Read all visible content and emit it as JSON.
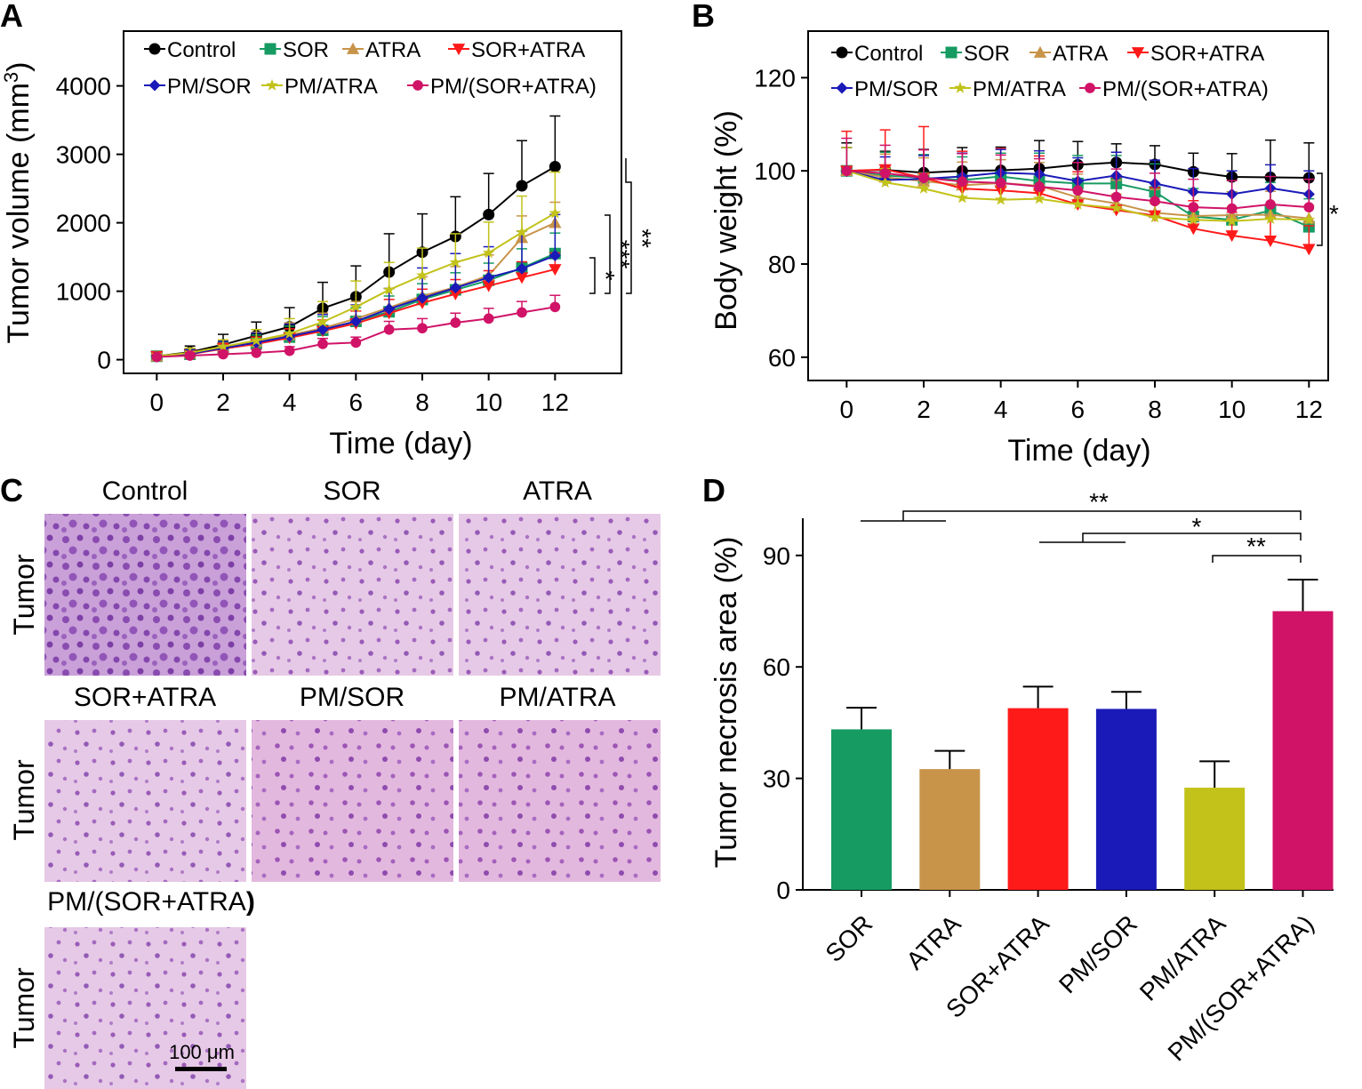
{
  "colors": {
    "Control": "#000000",
    "SOR": "#169b62",
    "ATRA": "#c8944a",
    "SOR+ATRA": "#ff1a1a",
    "PM/SOR": "#1a1ab8",
    "PM/ATRA": "#c2c21a",
    "PM/(SOR+ATRA)": "#d01367"
  },
  "legend_labels": [
    "Control",
    "SOR",
    "ATRA",
    "SOR+ATRA",
    "PM/SOR",
    "PM/ATRA",
    "PM/(SOR+ATRA)"
  ],
  "chart_data": [
    {
      "panel": "A",
      "type": "line",
      "xlabel": "Time (day)",
      "ylabel": "Tumor volume (mm",
      "ylabel_sup": "3",
      "ylabel_close": ")",
      "xlim": [
        -1,
        14
      ],
      "ylim": [
        -200,
        4800
      ],
      "xticks": [
        0,
        2,
        4,
        6,
        8,
        10,
        12
      ],
      "yticks": [
        0,
        1000,
        2000,
        3000,
        4000
      ],
      "x": [
        0,
        1,
        2,
        3,
        4,
        5,
        6,
        7,
        8,
        9,
        10,
        11,
        12
      ],
      "series": [
        {
          "name": "Control",
          "marker": "circle",
          "values": [
            50,
            110,
            220,
            350,
            480,
            750,
            920,
            1280,
            1570,
            1800,
            2120,
            2540,
            2820
          ],
          "err": [
            60,
            90,
            150,
            200,
            280,
            380,
            450,
            560,
            560,
            580,
            600,
            660,
            740
          ]
        },
        {
          "name": "SOR",
          "marker": "square",
          "values": [
            50,
            80,
            170,
            240,
            330,
            430,
            560,
            700,
            880,
            1020,
            1160,
            1340,
            1550
          ],
          "err": [
            40,
            60,
            80,
            120,
            160,
            200,
            200,
            230,
            230,
            250,
            250,
            280,
            300
          ]
        },
        {
          "name": "ATRA",
          "marker": "triangle-up",
          "values": [
            50,
            90,
            180,
            260,
            360,
            460,
            600,
            760,
            930,
            1060,
            1230,
            1780,
            2000
          ],
          "err": [
            40,
            60,
            100,
            140,
            180,
            220,
            250,
            280,
            280,
            300,
            300,
            320,
            300
          ]
        },
        {
          "name": "SOR+ATRA",
          "marker": "triangle-down",
          "values": [
            50,
            80,
            160,
            230,
            320,
            420,
            530,
            680,
            830,
            960,
            1080,
            1200,
            1320
          ],
          "err": [
            40,
            50,
            80,
            100,
            130,
            160,
            180,
            200,
            200,
            210,
            220,
            230,
            240
          ]
        },
        {
          "name": "PM/SOR",
          "marker": "diamond",
          "values": [
            50,
            85,
            170,
            250,
            340,
            440,
            560,
            740,
            900,
            1050,
            1200,
            1330,
            1520
          ],
          "err": [
            40,
            60,
            100,
            140,
            180,
            220,
            240,
            300,
            440,
            500,
            450,
            550,
            600
          ]
        },
        {
          "name": "PM/ATRA",
          "marker": "star",
          "values": [
            50,
            100,
            190,
            280,
            380,
            550,
            770,
            1020,
            1230,
            1420,
            1560,
            1860,
            2140
          ],
          "err": [
            40,
            70,
            100,
            160,
            220,
            300,
            380,
            400,
            400,
            420,
            450,
            530,
            600
          ]
        },
        {
          "name": "PM/(SOR+ATRA)",
          "marker": "hexagon",
          "values": [
            40,
            60,
            80,
            100,
            130,
            230,
            250,
            440,
            460,
            540,
            600,
            690,
            770
          ],
          "err": [
            30,
            40,
            40,
            50,
            60,
            80,
            80,
            120,
            140,
            140,
            150,
            160,
            170
          ]
        }
      ],
      "significance": [
        "*",
        "***",
        "**"
      ]
    },
    {
      "panel": "B",
      "type": "line",
      "xlabel": "Time (day)",
      "ylabel": "Body weight (%)",
      "xlim": [
        -1,
        12.5
      ],
      "ylim": [
        55,
        130
      ],
      "xticks": [
        0,
        2,
        4,
        6,
        8,
        10,
        12
      ],
      "yticks": [
        60,
        80,
        100,
        120
      ],
      "x": [
        0,
        1,
        2,
        3,
        4,
        5,
        6,
        7,
        8,
        9,
        10,
        11,
        12
      ],
      "series": [
        {
          "name": "Control",
          "marker": "circle",
          "values": [
            100,
            100.2,
            99.6,
            100,
            100.1,
            100.5,
            101.3,
            101.8,
            101.4,
            99.8,
            98.7,
            98.6,
            98.5
          ],
          "err": [
            6,
            4,
            5,
            5,
            5,
            6,
            5,
            4,
            4,
            4,
            5,
            8,
            7.5
          ]
        },
        {
          "name": "SOR",
          "marker": "square",
          "values": [
            100,
            99,
            98.5,
            98,
            98.8,
            97.8,
            97.3,
            97.3,
            95.5,
            90.2,
            89.5,
            91.5,
            88
          ],
          "err": [
            5,
            5,
            5,
            5,
            5,
            6,
            6,
            6,
            6,
            6,
            6,
            6,
            6
          ]
        },
        {
          "name": "ATRA",
          "marker": "triangle-up",
          "values": [
            100,
            98.6,
            97.8,
            96.9,
            97.4,
            96.8,
            94.3,
            93,
            91,
            90.3,
            90.5,
            90.6,
            89.8
          ],
          "err": [
            5,
            5,
            5,
            5,
            5,
            5,
            5,
            5,
            5,
            5,
            5,
            5,
            5
          ]
        },
        {
          "name": "SOR+ATRA",
          "marker": "triangle-down",
          "values": [
            100,
            100.3,
            98.5,
            96.2,
            95.8,
            95.2,
            92.8,
            91.6,
            90.4,
            87.6,
            86.1,
            85,
            83.2
          ],
          "err": [
            8.5,
            8.5,
            11,
            8,
            9,
            8,
            7,
            7,
            6,
            6,
            5,
            5,
            5
          ]
        },
        {
          "name": "PM/SOR",
          "marker": "diamond",
          "values": [
            100,
            98,
            98.3,
            98.8,
            99.6,
            99.3,
            97.8,
            99,
            97.3,
            95.5,
            95,
            96.3,
            95
          ],
          "err": [
            5,
            5,
            5,
            5,
            5,
            5,
            5,
            5,
            5,
            5,
            5,
            5,
            5
          ]
        },
        {
          "name": "PM/ATRA",
          "marker": "star",
          "values": [
            100,
            97.5,
            96.2,
            94.2,
            93.8,
            94,
            92.8,
            92,
            90,
            89.5,
            89.2,
            89.7,
            89.5
          ],
          "err": [
            5,
            3,
            3,
            3,
            3,
            3,
            3,
            3,
            3,
            3,
            3,
            3,
            3
          ]
        },
        {
          "name": "PM/(SOR+ATRA)",
          "marker": "hexagon",
          "values": [
            100,
            99.5,
            98.5,
            97.7,
            97.4,
            96.6,
            95.8,
            94.4,
            93.5,
            92.2,
            91.9,
            92.8,
            92.2
          ],
          "err": [
            7,
            6,
            6,
            6,
            6,
            6,
            6,
            6,
            6,
            6,
            6,
            6,
            6
          ]
        }
      ],
      "significance": [
        "*"
      ]
    },
    {
      "panel": "D",
      "type": "bar",
      "ylabel": "Tumor necrosis area (%)",
      "ylim": [
        0,
        100
      ],
      "yticks": [
        0,
        30,
        60,
        90
      ],
      "categories": [
        "SOR",
        "ATRA",
        "SOR+ATRA",
        "PM/SOR",
        "PM/ATRA",
        "PM/(SOR+ATRA)"
      ],
      "values": [
        43.2,
        32.5,
        48.9,
        48.7,
        27.5,
        75
      ],
      "err": [
        5.8,
        4.9,
        5.8,
        4.6,
        7.1,
        8.5
      ],
      "significance": [
        "**",
        "*",
        "**"
      ]
    }
  ],
  "panelC": {
    "captions": [
      "Control",
      "SOR",
      "ATRA",
      "SOR+ATRA",
      "PM/SOR",
      "PM/ATRA",
      "PM/(SOR+ATRA"
    ],
    "caption_bold_close": ")",
    "row_label": "Tumor",
    "scale_bar": "100 μm"
  },
  "panel_letters": [
    "A",
    "B",
    "C",
    "D"
  ]
}
